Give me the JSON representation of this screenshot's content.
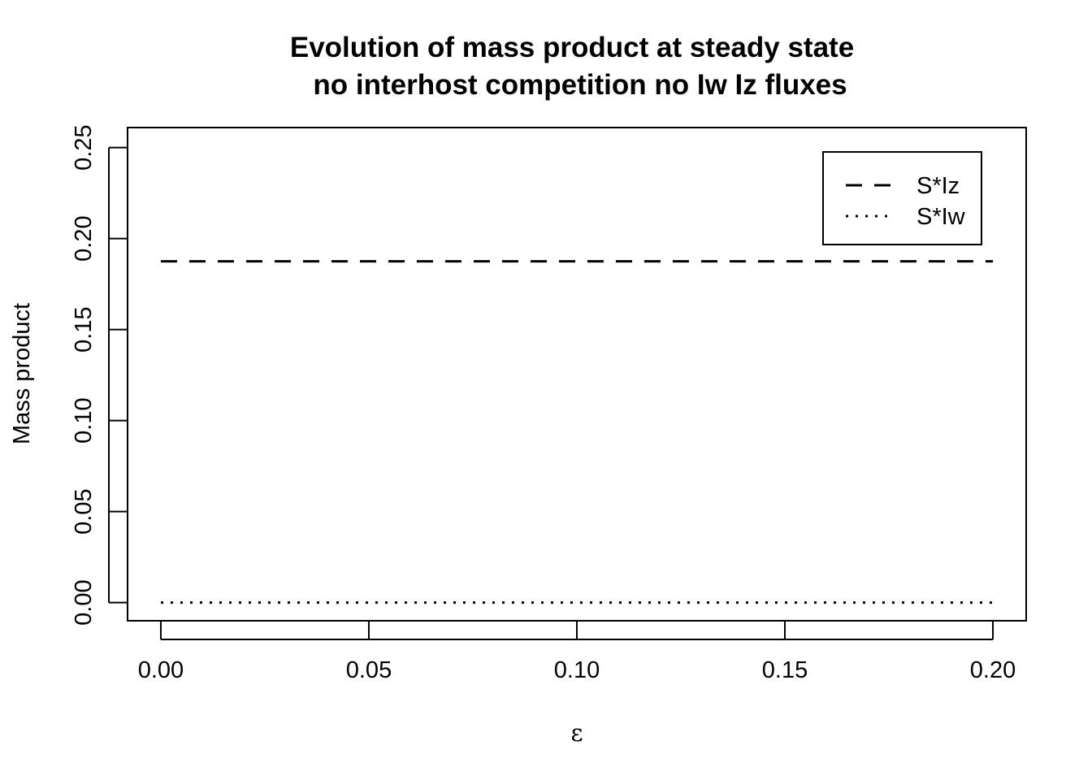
{
  "chart_data": {
    "type": "line",
    "title": "Evolution of mass product at steady state",
    "subtitle": "no interhost competition no Iw Iz fluxes",
    "xlabel": "ε",
    "ylabel": "Mass product",
    "xlim": [
      -0.008,
      0.208
    ],
    "ylim": [
      -0.01,
      0.261
    ],
    "x_ticks": [
      0.0,
      0.05,
      0.1,
      0.15,
      0.2
    ],
    "x_tick_labels": [
      "0.00",
      "0.05",
      "0.10",
      "0.15",
      "0.20"
    ],
    "y_ticks": [
      0.0,
      0.05,
      0.1,
      0.15,
      0.2,
      0.25
    ],
    "y_tick_labels": [
      "0.00",
      "0.05",
      "0.10",
      "0.15",
      "0.20",
      "0.25"
    ],
    "x": [
      0.0,
      0.2
    ],
    "series": [
      {
        "name": "S*Iz",
        "values": [
          0.1875,
          0.1875
        ],
        "line_style": "dashed",
        "color": "#000000"
      },
      {
        "name": "S*Iw",
        "values": [
          0.0,
          0.0
        ],
        "line_style": "dotted",
        "color": "#000000"
      }
    ],
    "legend_position": "top-right",
    "grid": false
  }
}
